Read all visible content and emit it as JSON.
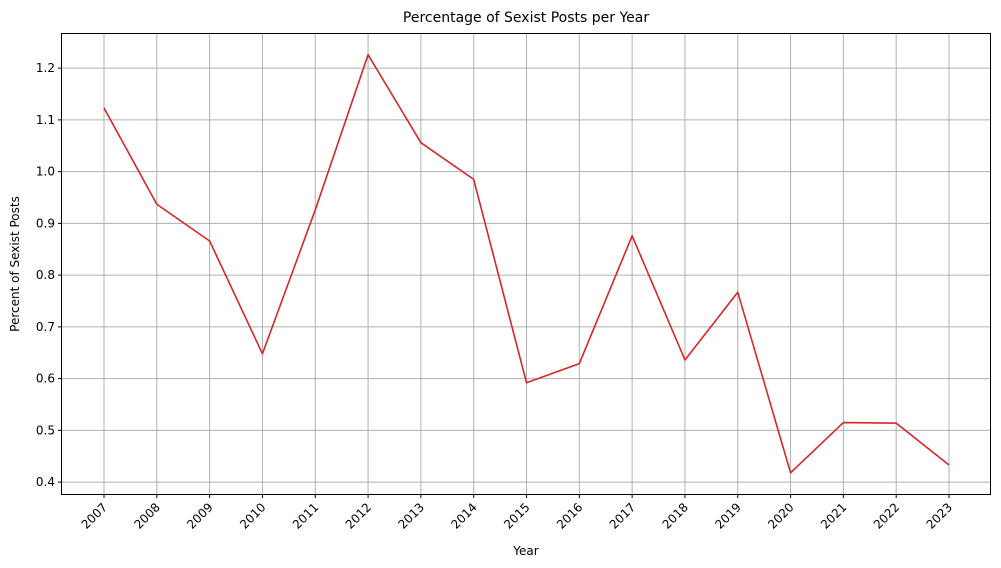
{
  "chart_data": {
    "type": "line",
    "title": "Percentage of Sexist Posts per Year",
    "xlabel": "Year",
    "ylabel": "Percent of Sexist Posts",
    "categories": [
      "2007",
      "2008",
      "2009",
      "2010",
      "2011",
      "2012",
      "2013",
      "2014",
      "2015",
      "2016",
      "2017",
      "2018",
      "2019",
      "2020",
      "2021",
      "2022",
      "2023"
    ],
    "series": [
      {
        "color": "#d62728",
        "values": [
          1.123,
          0.937,
          0.866,
          0.648,
          0.926,
          1.226,
          1.056,
          0.985,
          0.592,
          0.629,
          0.876,
          0.636,
          0.767,
          0.418,
          0.515,
          0.514,
          0.433
        ]
      }
    ],
    "ylim": [
      0.377,
      1.266
    ],
    "yticks": [
      "0.4",
      "0.5",
      "0.6",
      "0.7",
      "0.8",
      "0.9",
      "1.0",
      "1.1",
      "1.2"
    ],
    "grid": true,
    "xtick_rotation": 45
  }
}
